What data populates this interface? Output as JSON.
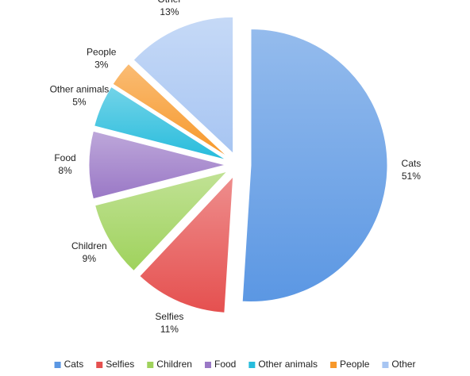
{
  "chart_data": {
    "type": "pie",
    "categories": [
      "Cats",
      "Selfies",
      "Children",
      "Food",
      "Other animals",
      "People",
      "Other"
    ],
    "values": [
      51,
      11,
      9,
      8,
      5,
      3,
      13
    ],
    "value_labels": [
      "51%",
      "11%",
      "9%",
      "8%",
      "5%",
      "3%",
      "13%"
    ],
    "colors": [
      "#5b97e3",
      "#e5504f",
      "#9fd25c",
      "#9a78c6",
      "#27bcdc",
      "#f7982a",
      "#a7c5f2"
    ],
    "legend": "bottom"
  }
}
